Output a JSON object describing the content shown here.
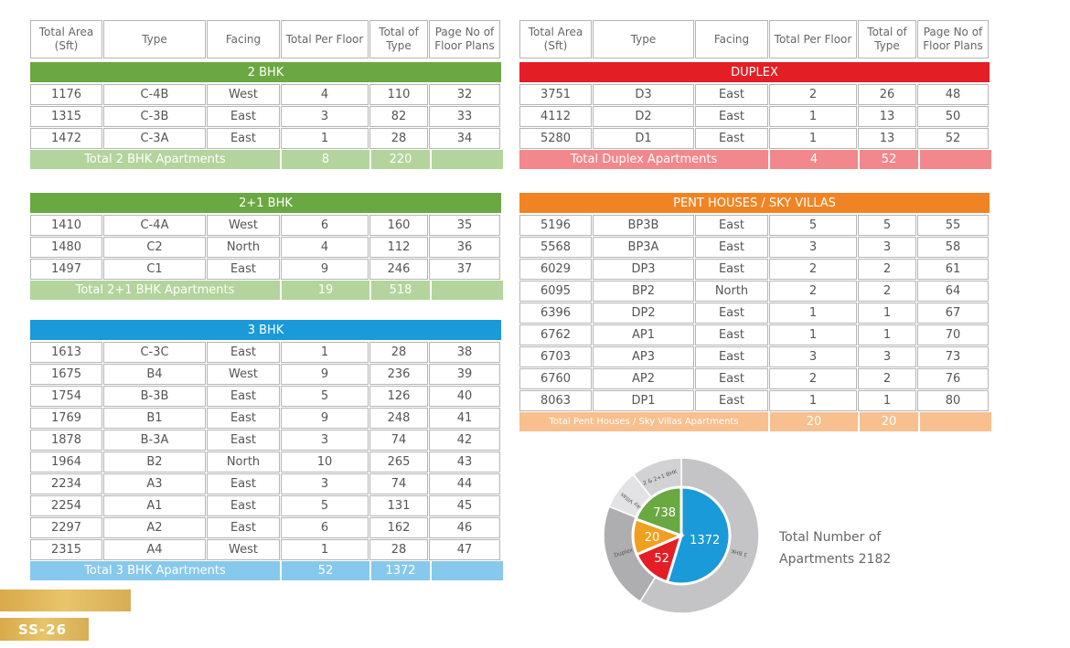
{
  "headers": [
    "Total Area (Sft)",
    "Type",
    "Facing",
    "Total Per Floor",
    "Total of Type",
    "Page No of Floor Plans"
  ],
  "sections": [
    {
      "id": "2bhk",
      "title": "2 BHK",
      "color": "#6aa842",
      "total_color": "#b3d49c",
      "rows": [
        [
          "1176",
          "C-4B",
          "West",
          "4",
          "110",
          "32"
        ],
        [
          "1315",
          "C-3B",
          "East",
          "3",
          "82",
          "33"
        ],
        [
          "1472",
          "C-3A",
          "East",
          "1",
          "28",
          "34"
        ]
      ],
      "total": {
        "label": "Total 2 BHK Apartments",
        "per_floor": "8",
        "of_type": "220"
      }
    },
    {
      "id": "2plus1bhk",
      "title": "2+1 BHK",
      "color": "#6aa842",
      "total_color": "#b3d49c",
      "rows": [
        [
          "1410",
          "C-4A",
          "West",
          "6",
          "160",
          "35"
        ],
        [
          "1480",
          "C2",
          "North",
          "4",
          "112",
          "36"
        ],
        [
          "1497",
          "C1",
          "East",
          "9",
          "246",
          "37"
        ]
      ],
      "total": {
        "label": "Total 2+1 BHK Apartments",
        "per_floor": "19",
        "of_type": "518"
      }
    },
    {
      "id": "3bhk",
      "title": "3 BHK",
      "color": "#1a9ad8",
      "total_color": "#86c9ec",
      "rows": [
        [
          "1613",
          "C-3C",
          "East",
          "1",
          "28",
          "38"
        ],
        [
          "1675",
          "B4",
          "West",
          "9",
          "236",
          "39"
        ],
        [
          "1754",
          "B-3B",
          "East",
          "5",
          "126",
          "40"
        ],
        [
          "1769",
          "B1",
          "East",
          "9",
          "248",
          "41"
        ],
        [
          "1878",
          "B-3A",
          "East",
          "3",
          "74",
          "42"
        ],
        [
          "1964",
          "B2",
          "North",
          "10",
          "265",
          "43"
        ],
        [
          "2234",
          "A3",
          "East",
          "3",
          "74",
          "44"
        ],
        [
          "2254",
          "A1",
          "East",
          "5",
          "131",
          "45"
        ],
        [
          "2297",
          "A2",
          "East",
          "6",
          "162",
          "46"
        ],
        [
          "2315",
          "A4",
          "West",
          "1",
          "28",
          "47"
        ]
      ],
      "total": {
        "label": "Total 3 BHK Apartments",
        "per_floor": "52",
        "of_type": "1372"
      }
    },
    {
      "id": "duplex",
      "title": "DUPLEX",
      "color": "#e31e25",
      "total_color": "#f2888b",
      "rows": [
        [
          "3751",
          "D3",
          "East",
          "2",
          "26",
          "48"
        ],
        [
          "4112",
          "D2",
          "East",
          "1",
          "13",
          "50"
        ],
        [
          "5280",
          "D1",
          "East",
          "1",
          "13",
          "52"
        ]
      ],
      "total": {
        "label": "Total Duplex Apartments",
        "per_floor": "4",
        "of_type": "52"
      }
    },
    {
      "id": "penthouses",
      "title": "PENT HOUSES / SKY VILLAS",
      "color": "#f08424",
      "total_color": "#f8c08e",
      "rows": [
        [
          "5196",
          "BP3B",
          "East",
          "5",
          "5",
          "55"
        ],
        [
          "5568",
          "BP3A",
          "East",
          "3",
          "3",
          "58"
        ],
        [
          "6029",
          "DP3",
          "East",
          "2",
          "2",
          "61"
        ],
        [
          "6095",
          "BP2",
          "North",
          "2",
          "2",
          "64"
        ],
        [
          "6396",
          "DP2",
          "East",
          "1",
          "1",
          "67"
        ],
        [
          "6762",
          "AP1",
          "East",
          "1",
          "1",
          "70"
        ],
        [
          "6703",
          "AP3",
          "East",
          "3",
          "3",
          "73"
        ],
        [
          "6760",
          "AP2",
          "East",
          "2",
          "2",
          "76"
        ],
        [
          "8063",
          "DP1",
          "East",
          "1",
          "1",
          "80"
        ]
      ],
      "total": {
        "label": "Total Pent Houses / Sky Villas Apartments",
        "per_floor": "20",
        "of_type": "20"
      }
    }
  ],
  "chart_data": {
    "type": "pie",
    "slices": [
      {
        "label": "3 BHK",
        "value": 1372,
        "color": "#1a9ad8"
      },
      {
        "label": "Duplex",
        "value": 52,
        "color": "#e31e25"
      },
      {
        "label": "Sky Villas",
        "value": 20,
        "color": "#f0a020"
      },
      {
        "label": "2 & 2+1 BHK",
        "value": 738,
        "color": "#6aa842"
      }
    ],
    "caption_line1": "Total Number of",
    "caption_line2": "Apartments 2182"
  },
  "footer": {
    "page_label": "SS-26"
  }
}
